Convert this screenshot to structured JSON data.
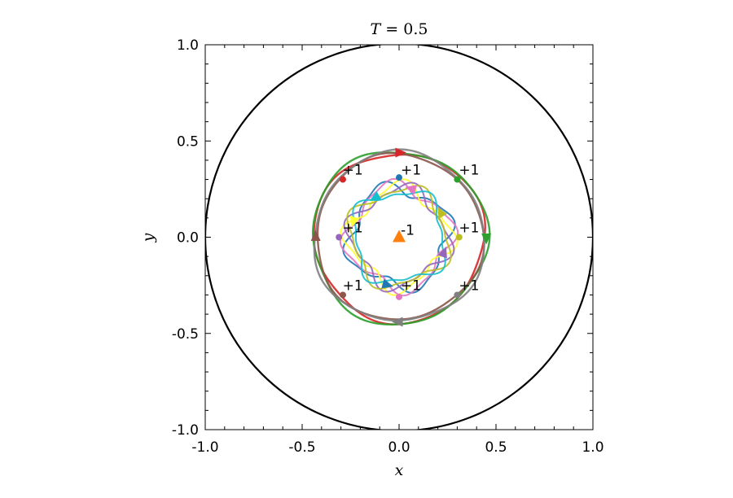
{
  "chart_data": {
    "type": "line",
    "title": "T = 0.5",
    "xlabel": "x",
    "ylabel": "y",
    "xlim": [
      -1.0,
      1.0
    ],
    "ylim": [
      -1.0,
      1.0
    ],
    "xticks": [
      "-1.0",
      "-0.5",
      "0.0",
      "0.5",
      "1.0"
    ],
    "yticks": [
      "-1.0",
      "-0.5",
      "0.0",
      "0.5",
      "1.0"
    ],
    "xtick_values": [
      -1.0,
      -0.5,
      0.0,
      0.5,
      1.0
    ],
    "ytick_values": [
      -1.0,
      -0.5,
      0.0,
      0.5,
      1.0
    ],
    "grid": false,
    "boundary": {
      "radius": 1.0,
      "color": "#000000"
    },
    "outer_trajectories": [
      {
        "color": "#d62728",
        "radius": 0.44,
        "wobble": 0.012,
        "phase": 0.0,
        "start_angle_deg": 132,
        "arrow_angle_deg": 90,
        "arrow_dir": "cw"
      },
      {
        "color": "#2ca02c",
        "radius": 0.45,
        "wobble": 0.014,
        "phase": 1.0,
        "start_angle_deg": 48,
        "arrow_angle_deg": 0,
        "arrow_dir": "cw"
      },
      {
        "color": "#8c564b",
        "radius": 0.43,
        "wobble": 0.01,
        "phase": 2.0,
        "start_angle_deg": 225,
        "arrow_angle_deg": 180,
        "arrow_dir": "cw"
      },
      {
        "color": "#7f7f7f",
        "radius": 0.44,
        "wobble": 0.012,
        "phase": 3.0,
        "start_angle_deg": 315,
        "arrow_angle_deg": 270,
        "arrow_dir": "cw"
      }
    ],
    "inner_trajectories": [
      {
        "color": "#1f77b4",
        "radius": 0.255,
        "wobble": 0.035,
        "phase": 0.0,
        "start_angle_deg": 90,
        "arrow_angle_deg": 255,
        "arrow_dir": "ccw"
      },
      {
        "color": "#e377c2",
        "radius": 0.26,
        "wobble": 0.035,
        "phase": 0.8,
        "start_angle_deg": 270,
        "arrow_angle_deg": 75,
        "arrow_dir": "ccw"
      },
      {
        "color": "#ffff33",
        "radius": 0.25,
        "wobble": 0.04,
        "phase": 1.6,
        "start_angle_deg": 180,
        "arrow_angle_deg": 160,
        "arrow_dir": "ccw"
      },
      {
        "color": "#9467bd",
        "radius": 0.245,
        "wobble": 0.035,
        "phase": 2.4,
        "start_angle_deg": 0,
        "arrow_angle_deg": 340,
        "arrow_dir": "ccw"
      },
      {
        "color": "#bcbd22",
        "radius": 0.25,
        "wobble": 0.03,
        "phase": 3.2,
        "start_angle_deg": 45,
        "arrow_angle_deg": 30,
        "arrow_dir": "ccw"
      },
      {
        "color": "#17becf",
        "radius": 0.24,
        "wobble": 0.03,
        "phase": 4.0,
        "start_angle_deg": 135,
        "arrow_angle_deg": 120,
        "arrow_dir": "ccw"
      }
    ],
    "center_marker": {
      "x": 0.0,
      "y": 0.0,
      "color": "#ff7f0e",
      "label": "-1"
    },
    "charge_labels": [
      {
        "x": -0.3,
        "y": 0.35,
        "text": "+1"
      },
      {
        "x": 0.0,
        "y": 0.35,
        "text": "+1"
      },
      {
        "x": 0.3,
        "y": 0.35,
        "text": "+1"
      },
      {
        "x": -0.3,
        "y": 0.05,
        "text": "+1"
      },
      {
        "x": 0.3,
        "y": 0.05,
        "text": "+1"
      },
      {
        "x": -0.3,
        "y": -0.25,
        "text": "+1"
      },
      {
        "x": 0.0,
        "y": -0.25,
        "text": "+1"
      },
      {
        "x": 0.3,
        "y": -0.25,
        "text": "+1"
      }
    ],
    "start_points": [
      {
        "x": -0.29,
        "y": 0.3,
        "color": "#d62728"
      },
      {
        "x": 0.0,
        "y": 0.31,
        "color": "#1f77b4"
      },
      {
        "x": 0.3,
        "y": 0.3,
        "color": "#2ca02c"
      },
      {
        "x": -0.31,
        "y": 0.0,
        "color": "#9467bd"
      },
      {
        "x": 0.31,
        "y": 0.0,
        "color": "#bcbd22"
      },
      {
        "x": -0.29,
        "y": -0.3,
        "color": "#8c564b"
      },
      {
        "x": 0.0,
        "y": -0.31,
        "color": "#e377c2"
      },
      {
        "x": 0.3,
        "y": -0.3,
        "color": "#7f7f7f"
      }
    ]
  }
}
